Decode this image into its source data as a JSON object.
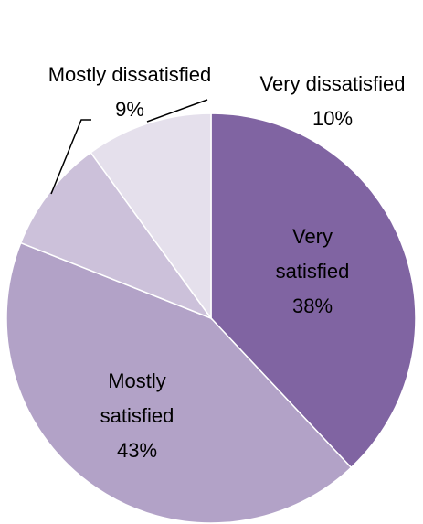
{
  "chart_data": {
    "type": "pie",
    "title": "",
    "slices": [
      {
        "category": "Very satisfied",
        "value": 38,
        "label_lines": [
          "Very",
          "satisfied",
          "38%"
        ],
        "color": "#8064a2"
      },
      {
        "category": "Mostly satisfied",
        "value": 43,
        "label_lines": [
          "Mostly",
          "satisfied",
          "43%"
        ],
        "color": "#b2a2c7"
      },
      {
        "category": "Mostly dissatisfied",
        "value": 9,
        "label_lines": [
          "Mostly dissatisfied",
          "9%"
        ],
        "color": "#ccc1da"
      },
      {
        "category": "Very dissatisfied",
        "value": 10,
        "label_lines": [
          "Very dissatisfied",
          "10%"
        ],
        "color": "#e5e0ec"
      }
    ],
    "start_angle": "12 o'clock",
    "direction": "clockwise",
    "legend": "none",
    "leader_line_color": "#000000"
  }
}
